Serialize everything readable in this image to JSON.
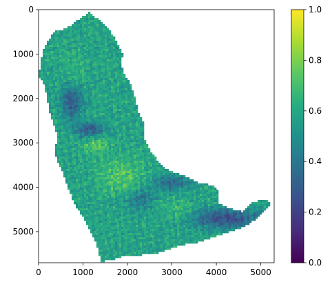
{
  "chart_data": {
    "type": "heatmap",
    "title": "",
    "xlabel": "",
    "ylabel": "",
    "xlim": [
      0,
      5300
    ],
    "ylim": [
      5700,
      0
    ],
    "x_ticks": [
      0,
      1000,
      2000,
      3000,
      4000,
      5000
    ],
    "y_ticks": [
      0,
      1000,
      2000,
      3000,
      4000,
      5000
    ],
    "x_tick_labels": [
      "0",
      "1000",
      "2000",
      "3000",
      "4000",
      "5000"
    ],
    "y_tick_labels": [
      "0",
      "1000",
      "2000",
      "3000",
      "4000",
      "5000"
    ],
    "colormap": "viridis",
    "color_range": [
      0.0,
      1.0
    ],
    "colorbar_ticks": [
      0.0,
      0.2,
      0.4,
      0.6,
      0.8,
      1.0
    ],
    "colorbar_tick_labels": [
      "0.0",
      "0.2",
      "0.4",
      "0.6",
      "0.8",
      "1.0"
    ],
    "grid": false,
    "region_outline": [
      [
        1060,
        120
      ],
      [
        1150,
        30
      ],
      [
        1240,
        150
      ],
      [
        1380,
        220
      ],
      [
        1450,
        330
      ],
      [
        1560,
        420
      ],
      [
        1720,
        650
      ],
      [
        1850,
        900
      ],
      [
        1900,
        1050
      ],
      [
        1850,
        1180
      ],
      [
        1900,
        1350
      ],
      [
        1950,
        1500
      ],
      [
        2050,
        1600
      ],
      [
        2150,
        1900
      ],
      [
        2200,
        2100
      ],
      [
        2250,
        2300
      ],
      [
        2350,
        2500
      ],
      [
        2350,
        2850
      ],
      [
        2500,
        3150
      ],
      [
        2650,
        3350
      ],
      [
        2800,
        3550
      ],
      [
        3000,
        3650
      ],
      [
        3300,
        3750
      ],
      [
        3600,
        3900
      ],
      [
        3900,
        3950
      ],
      [
        4050,
        4100
      ],
      [
        4050,
        4350
      ],
      [
        4250,
        4450
      ],
      [
        4400,
        4500
      ],
      [
        4600,
        4550
      ],
      [
        4800,
        4350
      ],
      [
        5000,
        4280
      ],
      [
        5150,
        4280
      ],
      [
        5250,
        4380
      ],
      [
        5100,
        4500
      ],
      [
        4900,
        4700
      ],
      [
        4700,
        4850
      ],
      [
        4450,
        4950
      ],
      [
        4150,
        5050
      ],
      [
        3850,
        5150
      ],
      [
        3550,
        5250
      ],
      [
        3200,
        5300
      ],
      [
        2900,
        5400
      ],
      [
        2600,
        5500
      ],
      [
        2200,
        5530
      ],
      [
        1900,
        5550
      ],
      [
        1650,
        5630
      ],
      [
        1400,
        5680
      ],
      [
        1350,
        5450
      ],
      [
        1250,
        5150
      ],
      [
        1100,
        4850
      ],
      [
        950,
        4600
      ],
      [
        800,
        4350
      ],
      [
        700,
        4100
      ],
      [
        600,
        3850
      ],
      [
        500,
        3550
      ],
      [
        400,
        3350
      ],
      [
        380,
        3100
      ],
      [
        430,
        2850
      ],
      [
        350,
        2600
      ],
      [
        250,
        2300
      ],
      [
        200,
        2050
      ],
      [
        150,
        1800
      ],
      [
        100,
        1600
      ],
      [
        20,
        1550
      ],
      [
        20,
        1400
      ],
      [
        50,
        1150
      ],
      [
        100,
        950
      ],
      [
        150,
        800
      ],
      [
        250,
        650
      ],
      [
        350,
        500
      ],
      [
        550,
        450
      ],
      [
        700,
        380
      ],
      [
        850,
        250
      ],
      [
        1000,
        150
      ]
    ],
    "low_value_zones": [
      {
        "center": [
          750,
          2000
        ],
        "radius": [
          230,
          420
        ],
        "value": 0.22
      },
      {
        "center": [
          1150,
          2700
        ],
        "radius": [
          330,
          160
        ],
        "value": 0.3
      },
      {
        "center": [
          3000,
          3900
        ],
        "radius": [
          450,
          170
        ],
        "value": 0.35
      },
      {
        "center": [
          4200,
          4700
        ],
        "radius": [
          800,
          220
        ],
        "value": 0.25
      },
      {
        "center": [
          2300,
          4250
        ],
        "radius": [
          350,
          260
        ],
        "value": 0.4
      }
    ],
    "high_value_zones": [
      {
        "center": [
          1850,
          3750
        ],
        "radius": [
          500,
          380
        ],
        "value": 0.8
      },
      {
        "center": [
          1300,
          3050
        ],
        "radius": [
          260,
          160
        ],
        "value": 0.82
      },
      {
        "center": [
          800,
          1400
        ],
        "radius": [
          300,
          500
        ],
        "value": 0.68
      },
      {
        "center": [
          3100,
          4500
        ],
        "radius": [
          400,
          250
        ],
        "value": 0.7
      }
    ],
    "base_value": 0.58
  }
}
